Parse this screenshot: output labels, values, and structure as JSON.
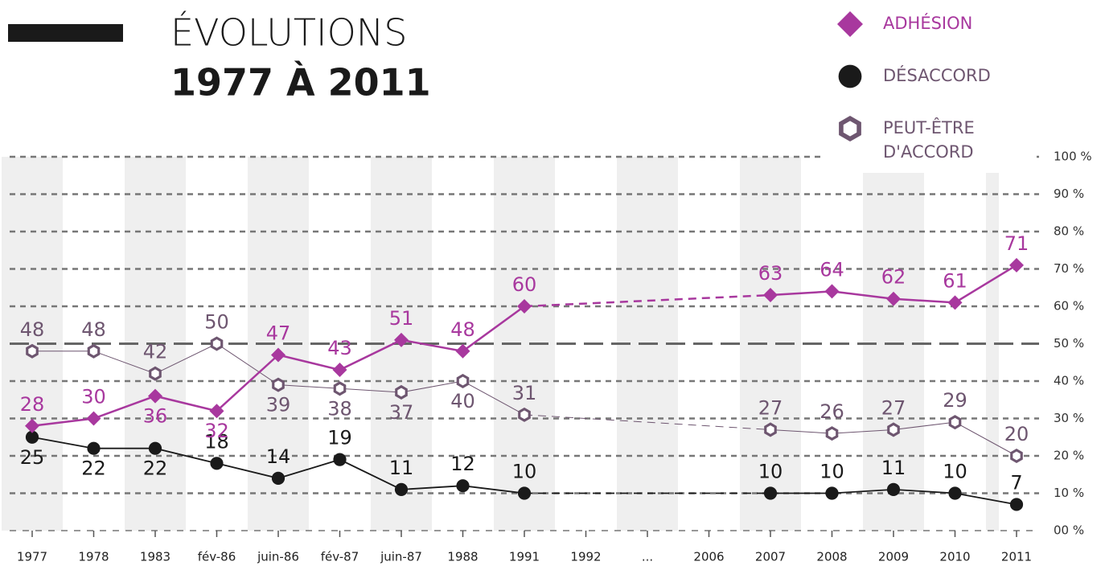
{
  "chart_data": {
    "type": "line",
    "title": "ÉVOLUTIONS",
    "subtitle": "1977 À 2011",
    "categories": [
      "1977",
      "1978",
      "1983",
      "fév-86",
      "juin-86",
      "fév-87",
      "juin-87",
      "1988",
      "1991",
      "1992",
      "...",
      "2006",
      "2007",
      "2008",
      "2009",
      "2010",
      "2011"
    ],
    "series": [
      {
        "name": "ADHÉSION",
        "color": "#a8389e",
        "marker": "diamond",
        "values": [
          28,
          30,
          36,
          32,
          47,
          43,
          51,
          48,
          60,
          null,
          null,
          null,
          63,
          64,
          62,
          61,
          71
        ]
      },
      {
        "name": "DÉSACCORD",
        "color": "#1a1a1a",
        "marker": "circle",
        "values": [
          25,
          22,
          22,
          18,
          14,
          19,
          11,
          12,
          10,
          null,
          null,
          null,
          10,
          10,
          11,
          10,
          7
        ]
      },
      {
        "name": "PEUT-ÊTRE D'ACCORD",
        "color": "#6e5670",
        "marker": "hexagon",
        "values": [
          48,
          48,
          42,
          50,
          39,
          38,
          37,
          40,
          31,
          null,
          null,
          null,
          27,
          26,
          27,
          29,
          20
        ]
      }
    ],
    "ylim": [
      0,
      100
    ],
    "yticks": [
      {
        "value": 0,
        "label": "00 %"
      },
      {
        "value": 10,
        "label": "10 %"
      },
      {
        "value": 20,
        "label": "20 %"
      },
      {
        "value": 30,
        "label": "30 %"
      },
      {
        "value": 40,
        "label": "40 %"
      },
      {
        "value": 50,
        "label": "50 %"
      },
      {
        "value": 60,
        "label": "60 %"
      },
      {
        "value": 70,
        "label": "70 %"
      },
      {
        "value": 80,
        "label": "80 %"
      },
      {
        "value": 90,
        "label": "90 %"
      },
      {
        "value": 100,
        "label": "100 %"
      }
    ],
    "grid": true,
    "legend": "top right"
  }
}
